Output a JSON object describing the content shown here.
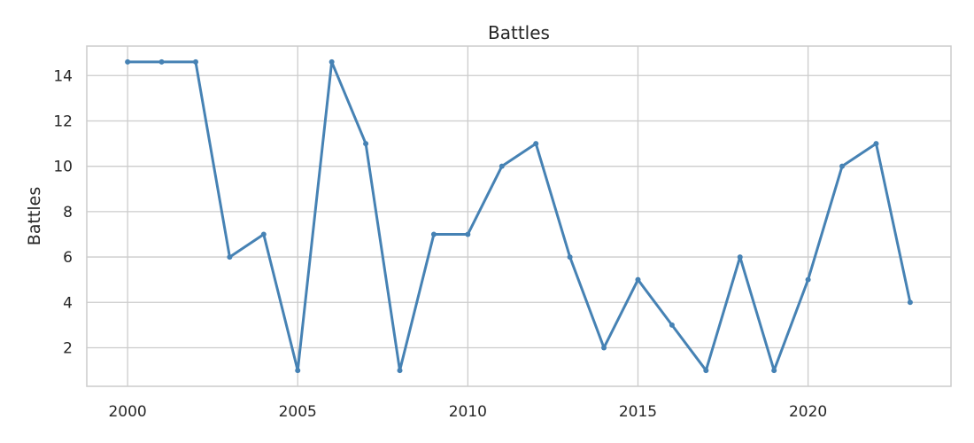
{
  "chart_data": {
    "type": "line",
    "title": "Battles",
    "xlabel": "",
    "ylabel": "Battles",
    "x": [
      2000,
      2001,
      2002,
      2003,
      2004,
      2005,
      2006,
      2007,
      2008,
      2009,
      2010,
      2011,
      2012,
      2013,
      2014,
      2015,
      2016,
      2017,
      2018,
      2019,
      2020,
      2021,
      2022,
      2023
    ],
    "series": [
      {
        "values": [
          14.6,
          14.6,
          14.6,
          6,
          7,
          1,
          14.6,
          11,
          1,
          7,
          7,
          10,
          11,
          6,
          2,
          5,
          3,
          1,
          6,
          1,
          5,
          10,
          11,
          4
        ],
        "color": "#4682b4"
      }
    ],
    "xlim": [
      1998.8,
      2024.2
    ],
    "ylim": [
      0.3,
      15.3
    ],
    "xticks": [
      2000,
      2005,
      2010,
      2015,
      2020
    ],
    "yticks": [
      2,
      4,
      6,
      8,
      10,
      12,
      14
    ],
    "grid": true,
    "colors": {
      "grid": "#cccccc",
      "frame": "#cccccc",
      "text": "#262626"
    }
  }
}
